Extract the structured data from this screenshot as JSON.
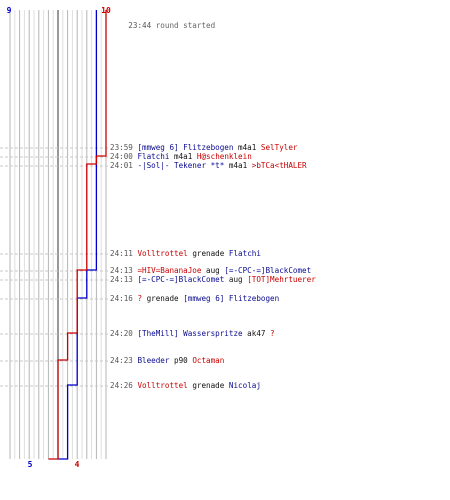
{
  "teams": {
    "blue": {
      "color": "#0000cc",
      "start_score": "9",
      "end_score": "5"
    },
    "red": {
      "color": "#cc0000",
      "start_score": "10",
      "end_score": "4"
    }
  },
  "header": {
    "time": "23:44",
    "text": "round started"
  },
  "events": [
    {
      "time": "23:59",
      "killer": "[mmweg 6] Flitzebogen",
      "killer_team": "blue",
      "weapon": "m4a1",
      "victim": "SelTyler",
      "victim_team": "red"
    },
    {
      "time": "24:00",
      "killer": "Flatchi",
      "killer_team": "blue",
      "weapon": "m4a1",
      "victim": "H@schenklein",
      "victim_team": "red"
    },
    {
      "time": "24:01",
      "killer": "-|Sol|- Tekener *t*",
      "killer_team": "blue",
      "weapon": "m4a1",
      "victim": ">bTCa<tHALER",
      "victim_team": "red"
    },
    {
      "time": "24:11",
      "killer": "Volltrottel",
      "killer_team": "red",
      "weapon": "grenade",
      "victim": "Flatchi",
      "victim_team": "blue"
    },
    {
      "time": "24:13",
      "killer": "=HIV=BananaJoe",
      "killer_team": "red",
      "weapon": "aug",
      "victim": "[=-CPC-=]BlackComet",
      "victim_team": "blue"
    },
    {
      "time": "24:13",
      "killer": "[=-CPC-=]BlackComet",
      "killer_team": "blue",
      "weapon": "aug",
      "victim": "[TOT]Mehrtuerer",
      "victim_team": "red"
    },
    {
      "time": "24:16",
      "killer": "?",
      "killer_team": "red",
      "weapon": "grenade",
      "victim": "[mmweg 6] Flitzebogen",
      "victim_team": "blue"
    },
    {
      "time": "24:20",
      "killer": "[TheMill] Wasserspritze",
      "killer_team": "blue",
      "weapon": "ak47",
      "victim": "?",
      "victim_team": "red"
    },
    {
      "time": "24:23",
      "killer": "Bleeder",
      "killer_team": "blue",
      "weapon": "p90",
      "victim": "Octaman",
      "victim_team": "red"
    },
    {
      "time": "24:26",
      "killer": "Volltrottel",
      "killer_team": "red",
      "weapon": "grenade",
      "victim": "Nicolaj",
      "victim_team": "blue"
    }
  ],
  "chart_data": {
    "type": "line",
    "title": "",
    "xlabel": "",
    "ylabel": "",
    "x_meaning": "players alive",
    "x_range": [
      0,
      10
    ],
    "series": [
      {
        "team": "blue",
        "color": "#0000cc",
        "steps": [
          [
            "23:44",
            9
          ],
          [
            "24:11",
            9
          ],
          [
            "24:13",
            8
          ],
          [
            "24:16",
            7
          ],
          [
            "24:26",
            6
          ],
          [
            "end",
            5
          ]
        ]
      },
      {
        "team": "red",
        "color": "#cc0000",
        "steps": [
          [
            "23:44",
            10
          ],
          [
            "23:59",
            10
          ],
          [
            "24:00",
            9
          ],
          [
            "24:01",
            8
          ],
          [
            "24:13",
            7
          ],
          [
            "24:20",
            6
          ],
          [
            "24:23",
            5
          ],
          [
            "end",
            4
          ]
        ]
      }
    ]
  }
}
